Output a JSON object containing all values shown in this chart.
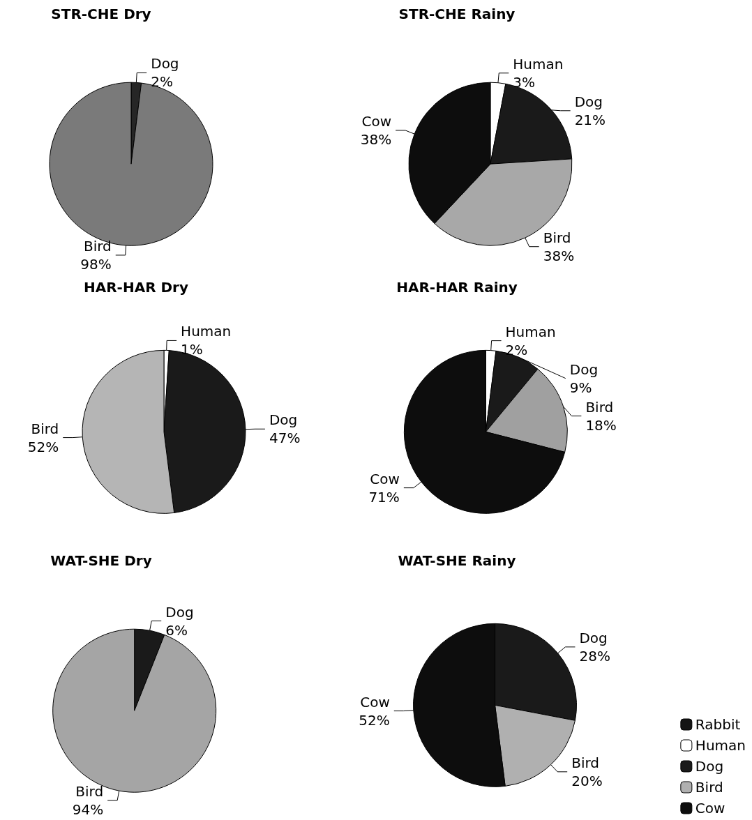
{
  "chart_data": [
    {
      "type": "pie",
      "title": "STR-CHE Dry",
      "categories": [
        "Dog",
        "Bird"
      ],
      "values": [
        2,
        98
      ],
      "colors": [
        "#262626",
        "#7a7a7a"
      ],
      "value_labels": [
        "2%",
        "98%"
      ]
    },
    {
      "type": "pie",
      "title": "STR-CHE Rainy",
      "categories": [
        "Human",
        "Dog",
        "Bird",
        "Cow"
      ],
      "values": [
        3,
        21,
        38,
        38
      ],
      "colors": [
        "#ffffff",
        "#1a1a1a",
        "#a8a8a8",
        "#0d0d0d"
      ],
      "value_labels": [
        "3%",
        "21%",
        "38%",
        "38%"
      ]
    },
    {
      "type": "pie",
      "title": "HAR-HAR Dry",
      "categories": [
        "Human",
        "Dog",
        "Bird"
      ],
      "values": [
        1,
        47,
        52
      ],
      "colors": [
        "#ffffff",
        "#1a1a1a",
        "#b5b5b5"
      ],
      "value_labels": [
        "1%",
        "47%",
        "52%"
      ]
    },
    {
      "type": "pie",
      "title": "HAR-HAR Rainy",
      "categories": [
        "Human",
        "Dog",
        "Bird",
        "Cow"
      ],
      "values": [
        2,
        9,
        18,
        71
      ],
      "colors": [
        "#ffffff",
        "#1a1a1a",
        "#a0a0a0",
        "#0d0d0d"
      ],
      "value_labels": [
        "2%",
        "9%",
        "18%",
        "71%"
      ]
    },
    {
      "type": "pie",
      "title": "WAT-SHE Dry",
      "categories": [
        "Dog",
        "Bird"
      ],
      "values": [
        6,
        94
      ],
      "colors": [
        "#1a1a1a",
        "#a5a5a5"
      ],
      "value_labels": [
        "6%",
        "94%"
      ]
    },
    {
      "type": "pie",
      "title": "WAT-SHE Rainy",
      "categories": [
        "Rabbit",
        "Human",
        "Dog",
        "Bird",
        "Cow"
      ],
      "values": [
        null,
        null,
        28,
        20,
        52
      ],
      "colors": [
        "#141414",
        "#ffffff",
        "#1a1a1a",
        "#b0b0b0",
        "#0d0d0d"
      ],
      "value_labels": [
        null,
        null,
        "28%",
        "20%",
        "52%"
      ],
      "legend": "bottom right"
    }
  ]
}
